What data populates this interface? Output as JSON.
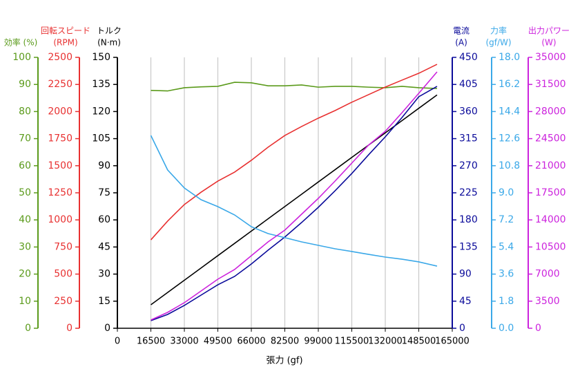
{
  "chart_data": {
    "type": "line",
    "x_label": "張力 (gf)",
    "x": [
      16500,
      24750,
      33000,
      41250,
      49500,
      57750,
      66000,
      74250,
      82500,
      90750,
      99000,
      107250,
      115500,
      123750,
      132000,
      140250,
      148500,
      157500
    ],
    "xlim": [
      0,
      165000
    ],
    "xticks": [
      0,
      16500,
      33000,
      49500,
      66000,
      82500,
      99000,
      115500,
      132000,
      148500,
      165000
    ],
    "grid": true,
    "series": [
      {
        "name": [
          "効率 (%)"
        ],
        "side": "left",
        "color": "#5a9a1a",
        "ylim": [
          0,
          100
        ],
        "yticks": [
          0,
          10,
          20,
          30,
          40,
          50,
          60,
          70,
          80,
          90,
          100
        ],
        "values": [
          87.8,
          87.6,
          88.8,
          89.1,
          89.3,
          90.8,
          90.6,
          89.5,
          89.5,
          89.8,
          89.0,
          89.3,
          89.3,
          89.0,
          88.8,
          89.3,
          88.8,
          88.5
        ]
      },
      {
        "name": [
          "回転スピード",
          "(RPM)"
        ],
        "side": "left",
        "color": "#e83030",
        "ylim": [
          0,
          2500
        ],
        "yticks": [
          0,
          250,
          500,
          750,
          1000,
          1250,
          1500,
          1750,
          2000,
          2250,
          2500
        ],
        "values": [
          816,
          989,
          1142,
          1256,
          1358,
          1441,
          1550,
          1671,
          1779,
          1862,
          1939,
          2009,
          2086,
          2156,
          2226,
          2290,
          2353,
          2436
        ]
      },
      {
        "name": [
          "トルク",
          "(N·m)"
        ],
        "side": "left",
        "color": "#000000",
        "ylim": [
          0,
          150
        ],
        "yticks": [
          0,
          15,
          30,
          45,
          60,
          75,
          90,
          105,
          120,
          135,
          150
        ],
        "values": [
          13,
          19.8,
          26.6,
          33.4,
          40.2,
          47.0,
          53.8,
          60.6,
          67.4,
          74.2,
          81.0,
          87.8,
          94.6,
          101.4,
          108.2,
          115.0,
          121.8,
          129.2
        ]
      },
      {
        "name": [
          "電流",
          "(A)"
        ],
        "side": "right",
        "color": "#0a0a9a",
        "ylim": [
          0,
          450
        ],
        "yticks": [
          0,
          45,
          90,
          135,
          180,
          225,
          270,
          315,
          360,
          405,
          450
        ],
        "values": [
          12.6,
          23.0,
          37.9,
          55.1,
          72.3,
          86.1,
          106.8,
          129.7,
          151.5,
          175.6,
          200.9,
          228.4,
          257.1,
          288.1,
          318.0,
          350.1,
          384.6,
          401.8
        ]
      },
      {
        "name": [
          "力率",
          "(gf/W)"
        ],
        "side": "right",
        "color": "#3aa8e8",
        "ylim": [
          0,
          18
        ],
        "yticks": [
          {
            "value": 0,
            "label": "0.0"
          },
          1.8,
          3.6,
          5.4,
          7.2,
          {
            "value": 9,
            "label": "9.0"
          },
          10.8,
          12.6,
          14.4,
          16.2,
          {
            "value": 18,
            "label": "18.0"
          }
        ],
        "values": [
          12.81,
          10.52,
          9.32,
          8.54,
          8.08,
          7.53,
          6.75,
          6.29,
          6.02,
          5.74,
          5.51,
          5.28,
          5.1,
          4.91,
          4.73,
          4.59,
          4.41,
          4.13
        ]
      },
      {
        "name": [
          "出力パワー",
          "(W)"
        ],
        "side": "right",
        "color": "#cc22dd",
        "ylim": [
          0,
          35000
        ],
        "yticks": [
          0,
          3500,
          7000,
          10500,
          14000,
          17500,
          21000,
          24500,
          28000,
          31500,
          35000
        ],
        "values": [
          1071,
          2054,
          3304,
          4822,
          6340,
          7589,
          9375,
          11161,
          12679,
          14733,
          16786,
          19018,
          21340,
          23661,
          25447,
          27857,
          30357,
          33125
        ]
      }
    ]
  }
}
